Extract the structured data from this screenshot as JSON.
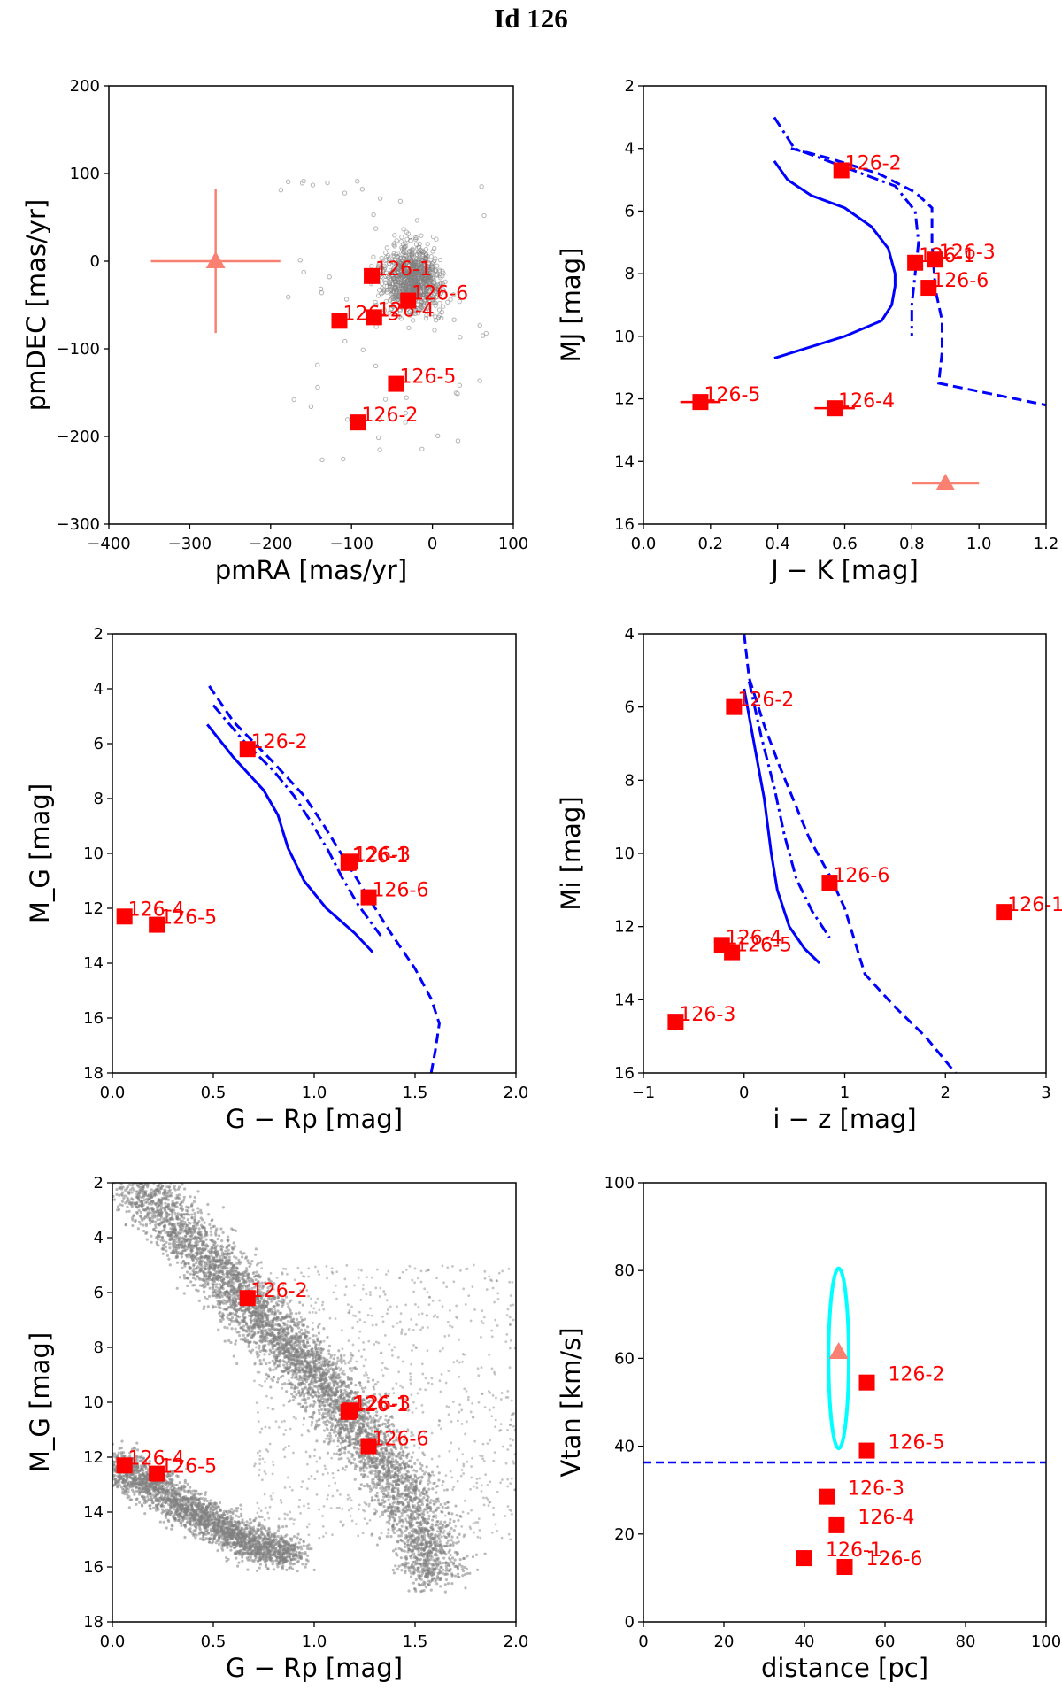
{
  "figure_title": "Id 126",
  "colors": {
    "point": "#ff0000",
    "star_marker": "#fa8072",
    "model_line": "#0000ff",
    "background_stars": "#808080",
    "ellipse": "#00ffff"
  },
  "chart_data": [
    {
      "id": "pm",
      "type": "scatter",
      "xlabel": "pmRA [mas/yr]",
      "ylabel": "pmDEC [mas/yr]",
      "xlim": [
        -400,
        100
      ],
      "ylim": [
        -300,
        200
      ],
      "xticks": [
        -400,
        -300,
        -200,
        -100,
        0,
        100
      ],
      "yticks": [
        -300,
        -200,
        -100,
        0,
        100,
        200
      ],
      "xtick_labels": [
        "−400",
        "−300",
        "−200",
        "−100",
        "0",
        "100"
      ],
      "ytick_labels": [
        "−300",
        "−200",
        "−100",
        "0",
        "100",
        "200"
      ],
      "cloud": {
        "center": [
          -25,
          -20
        ],
        "spread": [
          35,
          35
        ]
      },
      "primary": {
        "x": -268,
        "y": 0,
        "xerr": 80,
        "yerr": 82
      },
      "points": [
        {
          "label": "126-1",
          "x": -75,
          "y": -17
        },
        {
          "label": "126-6",
          "x": -30,
          "y": -45
        },
        {
          "label": "126-3",
          "x": -115,
          "y": -68
        },
        {
          "label": "126-4",
          "x": -72,
          "y": -64
        },
        {
          "label": "126-5",
          "x": -45,
          "y": -140
        },
        {
          "label": "126-2",
          "x": -92,
          "y": -184
        }
      ]
    },
    {
      "id": "mj",
      "type": "scatter",
      "xlabel": "J − K [mag]",
      "ylabel": "MJ [mag]",
      "xlim": [
        0,
        1.2
      ],
      "ylim": [
        16,
        2
      ],
      "xticks": [
        0,
        0.2,
        0.4,
        0.6,
        0.8,
        1.0,
        1.2
      ],
      "yticks": [
        2,
        4,
        6,
        8,
        10,
        12,
        14,
        16
      ],
      "xtick_labels": [
        "0.0",
        "0.2",
        "0.4",
        "0.6",
        "0.8",
        "1.0",
        "1.2"
      ],
      "ytick_labels": [
        "2",
        "4",
        "6",
        "8",
        "10",
        "12",
        "14",
        "16"
      ],
      "curves": [
        {
          "style": "solid",
          "x": [
            0.39,
            0.43,
            0.5,
            0.6,
            0.68,
            0.73,
            0.75,
            0.75,
            0.74,
            0.71,
            0.6,
            0.39
          ],
          "y": [
            4.4,
            5.0,
            5.5,
            5.9,
            6.5,
            7.2,
            8.0,
            8.4,
            9.0,
            9.5,
            10.0,
            10.7
          ]
        },
        {
          "style": "dashdot",
          "x": [
            0.39,
            0.45,
            0.6,
            0.75,
            0.81,
            0.82,
            0.81,
            0.8,
            0.8
          ],
          "y": [
            3.0,
            4.0,
            4.6,
            5.2,
            6.0,
            7.0,
            8.0,
            9.0,
            10.0
          ]
        },
        {
          "style": "dashed",
          "x": [
            0.44,
            0.55,
            0.7,
            0.81,
            0.86,
            0.86,
            0.87,
            0.89,
            0.89,
            0.88,
            1.2
          ],
          "y": [
            4.0,
            4.3,
            4.8,
            5.4,
            5.9,
            7.0,
            8.5,
            9.5,
            10.5,
            11.5,
            12.2
          ]
        }
      ],
      "primary": {
        "x": 0.9,
        "y": 14.7,
        "xerr": 0.1,
        "yerr": 0
      },
      "points": [
        {
          "label": "126-2",
          "x": 0.59,
          "y": 4.7,
          "xerr": 0
        },
        {
          "label": "126-1",
          "x": 0.81,
          "y": 7.65,
          "xerr": 0
        },
        {
          "label": "126-3",
          "x": 0.87,
          "y": 7.55,
          "xerr": 0
        },
        {
          "label": "126-6",
          "x": 0.85,
          "y": 8.45,
          "xerr": 0
        },
        {
          "label": "126-5",
          "x": 0.17,
          "y": 12.1,
          "xerr": 0.06
        },
        {
          "label": "126-4",
          "x": 0.57,
          "y": 12.3,
          "xerr": 0.06
        }
      ]
    },
    {
      "id": "gmag",
      "type": "scatter",
      "xlabel": "G − Rp [mag]",
      "ylabel": "M_G [mag]",
      "xlim": [
        0,
        2
      ],
      "ylim": [
        18,
        2
      ],
      "xticks": [
        0,
        0.5,
        1.0,
        1.5,
        2.0
      ],
      "yticks": [
        2,
        4,
        6,
        8,
        10,
        12,
        14,
        16,
        18
      ],
      "xtick_labels": [
        "0.0",
        "0.5",
        "1.0",
        "1.5",
        "2.0"
      ],
      "ytick_labels": [
        "2",
        "4",
        "6",
        "8",
        "10",
        "12",
        "14",
        "16",
        "18"
      ],
      "curves": [
        {
          "style": "solid",
          "x": [
            0.47,
            0.6,
            0.75,
            0.82,
            0.87,
            0.95,
            1.06,
            1.2,
            1.29
          ],
          "y": [
            5.3,
            6.5,
            7.7,
            8.6,
            9.8,
            11.0,
            12.0,
            12.9,
            13.6
          ]
        },
        {
          "style": "dashdot",
          "x": [
            0.5,
            0.65,
            0.8,
            0.9,
            0.98,
            1.07,
            1.14,
            1.22,
            1.33
          ],
          "y": [
            4.6,
            5.9,
            7.0,
            7.9,
            8.8,
            9.9,
            10.9,
            11.9,
            13.0
          ]
        },
        {
          "style": "dashed",
          "x": [
            0.48,
            0.6,
            0.8,
            0.95,
            1.05,
            1.15,
            1.26,
            1.38,
            1.5,
            1.58,
            1.62,
            1.6,
            1.58
          ],
          "y": [
            3.9,
            5.2,
            6.7,
            7.9,
            9.0,
            10.2,
            11.5,
            12.9,
            14.2,
            15.3,
            16.2,
            17.2,
            18.0
          ]
        }
      ],
      "points": [
        {
          "label": "126-2",
          "x": 0.67,
          "y": 6.2
        },
        {
          "label": "126-1",
          "x": 1.17,
          "y": 10.35
        },
        {
          "label": "126-3",
          "x": 1.18,
          "y": 10.3
        },
        {
          "label": "126-6",
          "x": 1.27,
          "y": 11.6
        },
        {
          "label": "126-4",
          "x": 0.06,
          "y": 12.3
        },
        {
          "label": "126-5",
          "x": 0.22,
          "y": 12.6
        }
      ]
    },
    {
      "id": "mi",
      "type": "scatter",
      "xlabel": "i − z [mag]",
      "ylabel": "Mi [mag]",
      "xlim": [
        -1,
        3
      ],
      "ylim": [
        16,
        4
      ],
      "xticks": [
        -1,
        0,
        1,
        2,
        3
      ],
      "yticks": [
        4,
        6,
        8,
        10,
        12,
        14,
        16
      ],
      "xtick_labels": [
        "−1",
        "0",
        "1",
        "2",
        "3"
      ],
      "ytick_labels": [
        "4",
        "6",
        "8",
        "10",
        "12",
        "14",
        "16"
      ],
      "curves": [
        {
          "style": "solid",
          "x": [
            0.0,
            0.1,
            0.2,
            0.27,
            0.33,
            0.45,
            0.6,
            0.75
          ],
          "y": [
            5.5,
            7.0,
            8.5,
            10.0,
            11.0,
            12.0,
            12.6,
            13.0
          ]
        },
        {
          "style": "dashdot",
          "x": [
            0.05,
            0.17,
            0.3,
            0.4,
            0.52,
            0.68,
            0.85
          ],
          "y": [
            5.3,
            6.8,
            8.2,
            9.5,
            10.7,
            11.6,
            12.3
          ]
        },
        {
          "style": "dashed",
          "x": [
            0.0,
            0.05,
            0.2,
            0.35,
            0.5,
            0.65,
            0.85,
            1.0,
            1.2,
            1.5,
            1.8,
            2.1
          ],
          "y": [
            4.0,
            5.2,
            6.5,
            7.6,
            8.6,
            9.6,
            10.6,
            11.5,
            13.3,
            14.2,
            15.0,
            16.0
          ]
        }
      ],
      "points": [
        {
          "label": "126-2",
          "x": -0.1,
          "y": 6.0
        },
        {
          "label": "126-6",
          "x": 0.85,
          "y": 10.8
        },
        {
          "label": "126-1",
          "x": 2.58,
          "y": 11.6
        },
        {
          "label": "126-4",
          "x": -0.22,
          "y": 12.5
        },
        {
          "label": "126-5",
          "x": -0.12,
          "y": 12.7
        },
        {
          "label": "126-3",
          "x": -0.68,
          "y": 14.6
        }
      ]
    },
    {
      "id": "gmag-field",
      "type": "scatter",
      "xlabel": "G − Rp [mag]",
      "ylabel": "M_G [mag]",
      "xlim": [
        0,
        2
      ],
      "ylim": [
        18,
        2
      ],
      "xticks": [
        0,
        0.5,
        1.0,
        1.5,
        2.0
      ],
      "yticks": [
        2,
        4,
        6,
        8,
        10,
        12,
        14,
        16,
        18
      ],
      "xtick_labels": [
        "0.0",
        "0.5",
        "1.0",
        "1.5",
        "2.0"
      ],
      "ytick_labels": [
        "2",
        "4",
        "6",
        "8",
        "10",
        "12",
        "14",
        "16",
        "18"
      ],
      "field_sequences": [
        {
          "name": "main sequence",
          "x": [
            0.12,
            0.3,
            0.5,
            0.65,
            0.8,
            0.95,
            1.1,
            1.25,
            1.4,
            1.55,
            1.6
          ],
          "y": [
            2.0,
            3.5,
            5.0,
            6.2,
            7.5,
            8.6,
            9.8,
            11.2,
            12.8,
            14.8,
            16.5
          ],
          "width": 0.18
        },
        {
          "name": "white dwarf sequence",
          "x": [
            0.0,
            0.15,
            0.3,
            0.45,
            0.6,
            0.75,
            0.9
          ],
          "y": [
            12.2,
            12.8,
            13.5,
            14.2,
            14.8,
            15.3,
            15.6
          ],
          "width": 0.12
        }
      ],
      "points": [
        {
          "label": "126-2",
          "x": 0.67,
          "y": 6.2
        },
        {
          "label": "126-1",
          "x": 1.17,
          "y": 10.35
        },
        {
          "label": "126-3",
          "x": 1.18,
          "y": 10.3
        },
        {
          "label": "126-6",
          "x": 1.27,
          "y": 11.6
        },
        {
          "label": "126-4",
          "x": 0.06,
          "y": 12.3
        },
        {
          "label": "126-5",
          "x": 0.22,
          "y": 12.6
        }
      ]
    },
    {
      "id": "vtan",
      "type": "scatter",
      "xlabel": "distance [pc]",
      "ylabel": "Vtan [km/s]",
      "xlim": [
        0,
        100
      ],
      "ylim": [
        0,
        100
      ],
      "xticks": [
        0,
        20,
        40,
        60,
        80,
        100
      ],
      "yticks": [
        0,
        20,
        40,
        60,
        80,
        100
      ],
      "xtick_labels": [
        "0",
        "20",
        "40",
        "60",
        "80",
        "100"
      ],
      "ytick_labels": [
        "0",
        "20",
        "40",
        "60",
        "80",
        "100"
      ],
      "threshold": 36.3,
      "ellipse": {
        "cx": 48.5,
        "cy": 60,
        "rx": 2.5,
        "ry": 20.5
      },
      "primary": {
        "x": 48.5,
        "y": 61.5
      },
      "points": [
        {
          "label": "126-2",
          "x": 55.5,
          "y": 54.5
        },
        {
          "label": "126-5",
          "x": 55.5,
          "y": 39.0
        },
        {
          "label": "126-3",
          "x": 45.5,
          "y": 28.5
        },
        {
          "label": "126-4",
          "x": 48.0,
          "y": 22.0
        },
        {
          "label": "126-1",
          "x": 40.0,
          "y": 14.5
        },
        {
          "label": "126-6",
          "x": 50.0,
          "y": 12.5
        }
      ]
    }
  ]
}
